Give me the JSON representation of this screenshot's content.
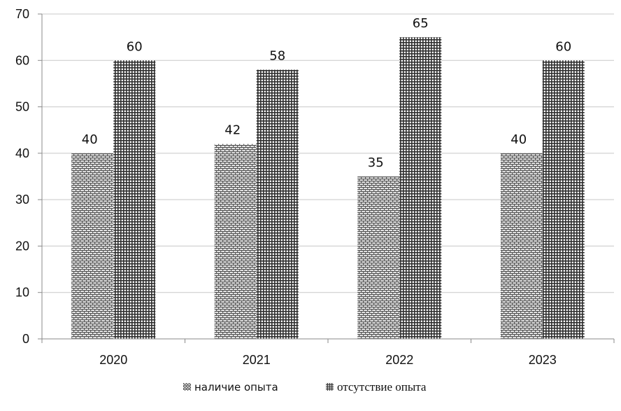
{
  "chart_data": {
    "type": "bar",
    "categories": [
      "2020",
      "2021",
      "2022",
      "2023"
    ],
    "series": [
      {
        "name": "наличие опыта",
        "values": [
          40,
          42,
          35,
          40
        ],
        "color": "#5a5a5a",
        "pattern": "brick"
      },
      {
        "name": "отсутствие опыта",
        "values": [
          60,
          58,
          65,
          60
        ],
        "color": "#3a3a3a",
        "pattern": "grid"
      }
    ],
    "ylim": [
      0,
      70
    ],
    "yticks": [
      0,
      10,
      20,
      30,
      40,
      50,
      60,
      70
    ],
    "grid": true,
    "legend_position": "bottom-center",
    "title": "",
    "xlabel": "",
    "ylabel": ""
  }
}
